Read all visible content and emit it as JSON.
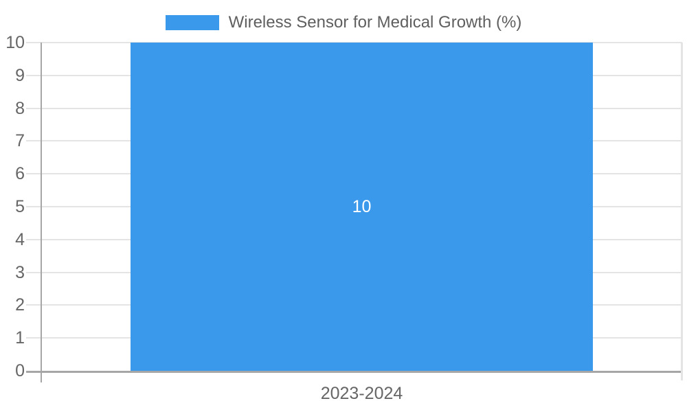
{
  "chart_data": {
    "type": "bar",
    "title": "",
    "categories": [
      "2023-2024"
    ],
    "series": [
      {
        "name": "Wireless Sensor for Medical Growth (%)",
        "values": [
          10
        ],
        "color": "#3B99EC"
      }
    ],
    "bar_value_labels": [
      "10"
    ],
    "xlabel": "",
    "ylabel": "",
    "ylim": [
      0,
      10
    ],
    "yticks": [
      0,
      1,
      2,
      3,
      4,
      5,
      6,
      7,
      8,
      9,
      10
    ],
    "grid": true,
    "legend_position": "top"
  },
  "colors": {
    "bar": "#3B99EC",
    "grid": "#e4e4e4",
    "axis": "#a6a6a6",
    "text": "#666666",
    "legend_text": "#5f5f5f",
    "bar_label_text": "#ffffff",
    "background": "#ffffff"
  }
}
